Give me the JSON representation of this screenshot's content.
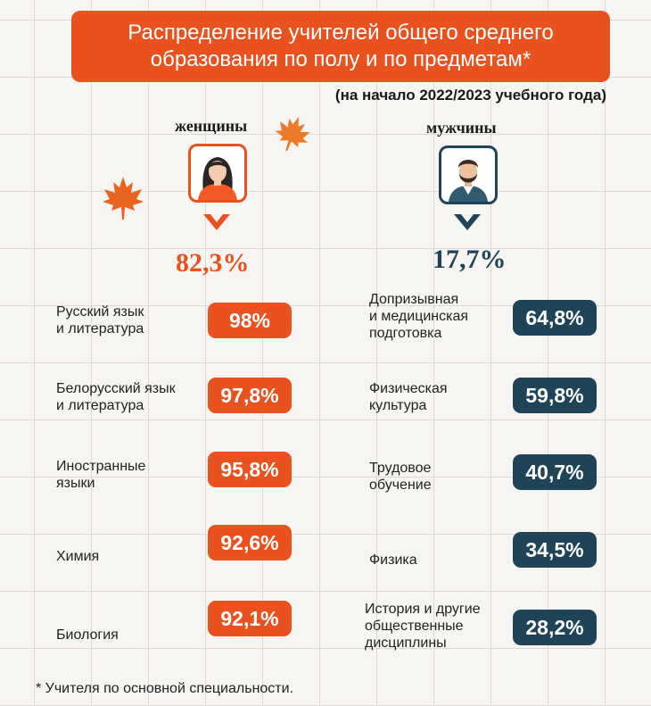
{
  "title": "Распределение учителей общего среднего\nобразования по полу и по предметам*",
  "subtitle": "(на начало 2022/2023 учебного года)",
  "footnote": "* Учителя по основной специальности.",
  "colors": {
    "women": "#e9521e",
    "men": "#1f4458"
  },
  "chart_data": {
    "type": "table",
    "groups": [
      {
        "name": "женщины",
        "total_label": "82,3%",
        "total_value": 82.3,
        "icon": "woman-avatar-icon",
        "color": "#e9521e",
        "subjects": [
          {
            "label": "Русский язык\nи литература",
            "value": 98,
            "value_label": "98%"
          },
          {
            "label": "Белорусский язык\nи литература",
            "value": 97.8,
            "value_label": "97,8%"
          },
          {
            "label": "Иностранные\nязыки",
            "value": 95.8,
            "value_label": "95,8%"
          },
          {
            "label": "Химия",
            "value": 92.6,
            "value_label": "92,6%"
          },
          {
            "label": "Биология",
            "value": 92.1,
            "value_label": "92,1%"
          }
        ]
      },
      {
        "name": "мужчины",
        "total_label": "17,7%",
        "total_value": 17.7,
        "icon": "man-avatar-icon",
        "color": "#1f4458",
        "subjects": [
          {
            "label": "Допризывная\nи медицинская\nподготовка",
            "value": 64.8,
            "value_label": "64,8%"
          },
          {
            "label": "Физическая\nкультура",
            "value": 59.8,
            "value_label": "59,8%"
          },
          {
            "label": "Трудовое\nобучение",
            "value": 40.7,
            "value_label": "40,7%"
          },
          {
            "label": "Физика",
            "value": 34.5,
            "value_label": "34,5%"
          },
          {
            "label": "История и другие\nобщественные\nдисциплины",
            "value": 28.2,
            "value_label": "28,2%"
          }
        ]
      }
    ]
  }
}
